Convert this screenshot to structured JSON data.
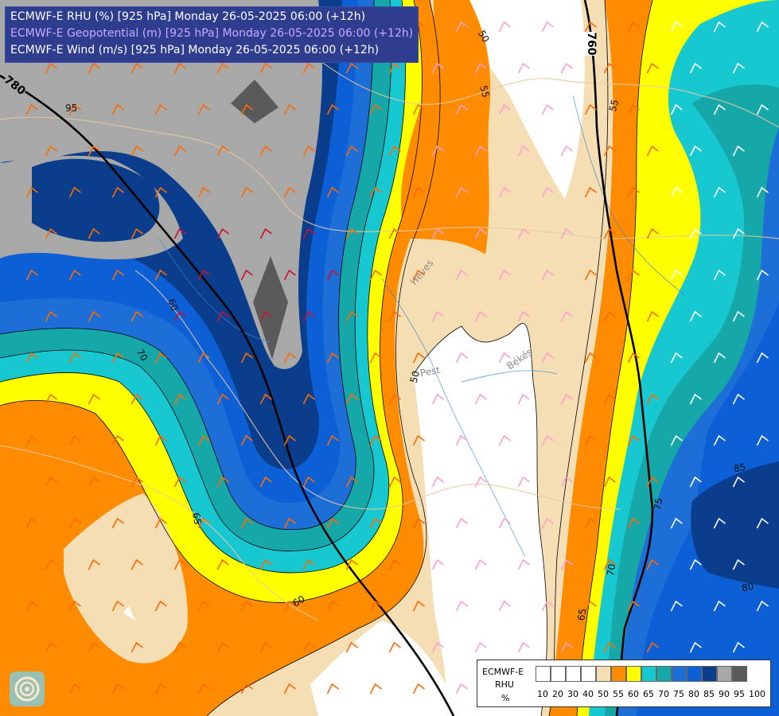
{
  "titles": [
    "ECMWF-E RHU (%) [925 hPa] Monday 26-05-2025 06:00 (+12h)",
    "ECMWF-E Geopotential (m) [925 hPa] Monday 26-05-2025 06:00 (+12h)",
    "ECMWF-E Wind (m/s) [925 hPa] Monday 26-05-2025 06:00 (+12h)"
  ],
  "legend": {
    "model": "ECMWF-E",
    "variable": "RHU",
    "unit": "%",
    "ticks": [
      "10",
      "20",
      "30",
      "40",
      "50",
      "55",
      "60",
      "65",
      "70",
      "75",
      "80",
      "85",
      "90",
      "95",
      "100"
    ],
    "colors": [
      "#ffffff",
      "#ffffff",
      "#ffffff",
      "#ffffff",
      "#f5deb3",
      "#ff8c00",
      "#ffff00",
      "#18c8d0",
      "#16a8a8",
      "#1e6ed8",
      "#0d5fd6",
      "#0a3d8c",
      "#a8a8a8",
      "#5a5a5a"
    ]
  },
  "geopotential_labels": [
    "780",
    "760"
  ],
  "contour_labels": [
    "95",
    "60",
    "70",
    "65",
    "60",
    "50",
    "55",
    "50",
    "55",
    "65",
    "70",
    "75",
    "85",
    "80",
    "65"
  ],
  "place_labels": [
    "Heves",
    "Pest",
    "Békés"
  ],
  "icon": "ecmwf-logo-icon"
}
